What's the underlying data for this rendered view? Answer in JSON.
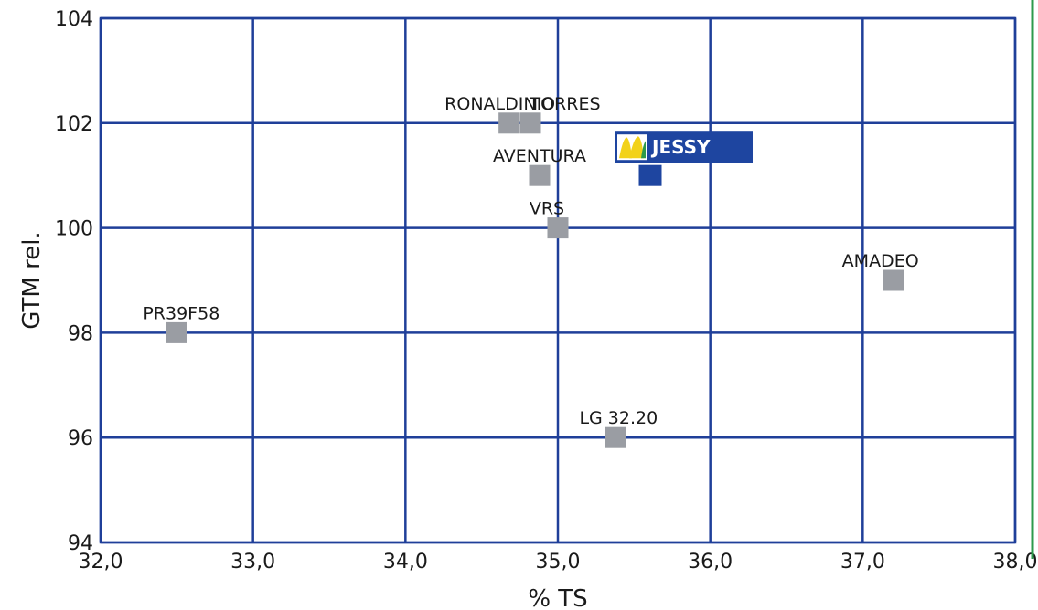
{
  "chart_data": {
    "type": "scatter",
    "xlabel": "% TS",
    "ylabel": "GTM rel.",
    "xlim": [
      32.0,
      38.0
    ],
    "ylim": [
      94,
      104
    ],
    "x_ticks": [
      "32,0",
      "33,0",
      "34,0",
      "35,0",
      "36,0",
      "37,0",
      "38,0"
    ],
    "y_ticks": [
      "94",
      "96",
      "98",
      "100",
      "102",
      "104"
    ],
    "grid": true,
    "points": [
      {
        "label": "RONALDINIO",
        "x": 34.68,
        "y": 102.0
      },
      {
        "label": "TORRES",
        "x": 34.82,
        "y": 102.0
      },
      {
        "label": "AVENTURA",
        "x": 34.88,
        "y": 101.0
      },
      {
        "label": "VRS",
        "x": 35.0,
        "y": 100.0
      },
      {
        "label": "AMADEO",
        "x": 37.2,
        "y": 99.0
      },
      {
        "label": "PR39F58",
        "x": 32.5,
        "y": 98.0
      },
      {
        "label": "LG 32.20",
        "x": 35.38,
        "y": 96.0
      },
      {
        "label": "JESSY",
        "x": 35.6,
        "y": 101.0,
        "highlight": true
      }
    ],
    "colors": {
      "grid": "#1f3f99",
      "point": "#9a9da3",
      "highlight": "#1e45a0",
      "highlight_label_bg": "#1e45a0",
      "right_border": "#2e9a4b",
      "logo_yellow": "#f2d21a",
      "logo_green": "#2e9a4b"
    },
    "highlight_icon": "corn-logo-icon"
  }
}
